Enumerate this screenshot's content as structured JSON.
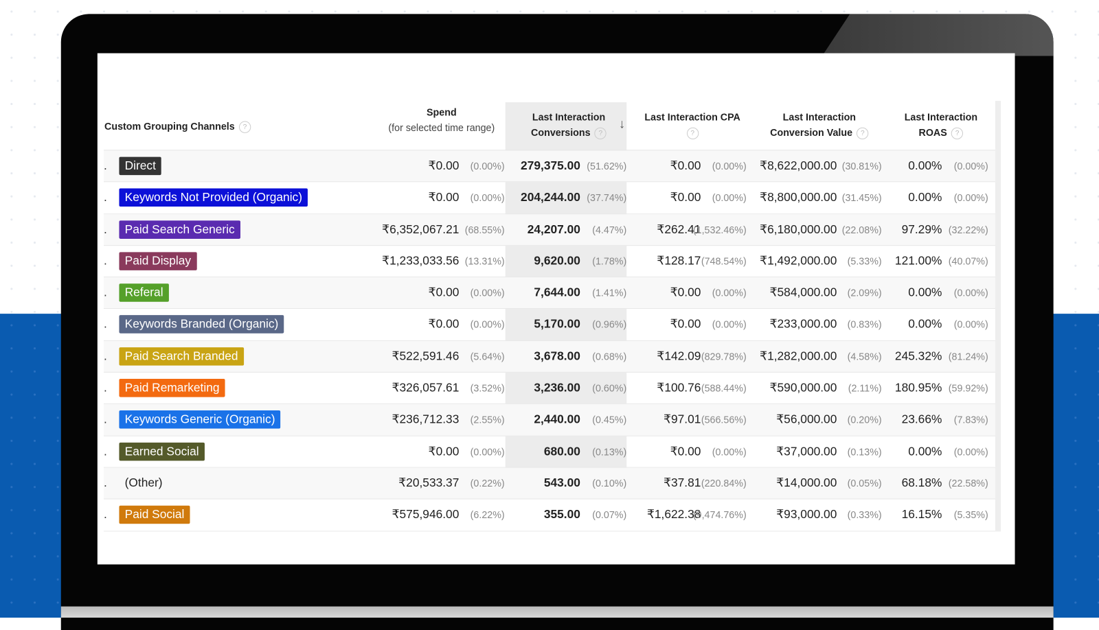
{
  "headers": {
    "channel": "Custom Grouping Channels",
    "spend": "Spend",
    "spend_sub": "(for selected time range)",
    "conv_1": "Last Interaction",
    "conv_2": "Conversions",
    "cpa": "Last Interaction CPA",
    "value_1": "Last Interaction",
    "value_2": "Conversion Value",
    "roas_1": "Last Interaction",
    "roas_2": "ROAS",
    "help": "?",
    "sort": "↓"
  },
  "rows": [
    {
      "channel": "Direct",
      "color": "#333333",
      "spend": "₹0.00",
      "spend_pct": "(0.00%)",
      "conv": "279,375.00",
      "conv_pct": "(51.62%)",
      "cpa": "₹0.00",
      "cpa_pct": "(0.00%)",
      "value": "₹8,622,000.00",
      "value_pct": "(30.81%)",
      "roas": "0.00%",
      "roas_pct": "(0.00%)"
    },
    {
      "channel": "Keywords Not Provided (Organic)",
      "color": "#0c10d8",
      "spend": "₹0.00",
      "spend_pct": "(0.00%)",
      "conv": "204,244.00",
      "conv_pct": "(37.74%)",
      "cpa": "₹0.00",
      "cpa_pct": "(0.00%)",
      "value": "₹8,800,000.00",
      "value_pct": "(31.45%)",
      "roas": "0.00%",
      "roas_pct": "(0.00%)"
    },
    {
      "channel": "Paid Search Generic",
      "color": "#5a2bb0",
      "spend": "₹6,352,067.21",
      "spend_pct": "(68.55%)",
      "conv": "24,207.00",
      "conv_pct": "(4.47%)",
      "cpa": "₹262.41",
      "cpa_pct": "(1,532.46%)",
      "value": "₹6,180,000.00",
      "value_pct": "(22.08%)",
      "roas": "97.29%",
      "roas_pct": "(32.22%)"
    },
    {
      "channel": "Paid Display",
      "color": "#8a3a5c",
      "spend": "₹1,233,033.56",
      "spend_pct": "(13.31%)",
      "conv": "9,620.00",
      "conv_pct": "(1.78%)",
      "cpa": "₹128.17",
      "cpa_pct": "(748.54%)",
      "value": "₹1,492,000.00",
      "value_pct": "(5.33%)",
      "roas": "121.00%",
      "roas_pct": "(40.07%)"
    },
    {
      "channel": "Referal",
      "color": "#55a02a",
      "spend": "₹0.00",
      "spend_pct": "(0.00%)",
      "conv": "7,644.00",
      "conv_pct": "(1.41%)",
      "cpa": "₹0.00",
      "cpa_pct": "(0.00%)",
      "value": "₹584,000.00",
      "value_pct": "(2.09%)",
      "roas": "0.00%",
      "roas_pct": "(0.00%)"
    },
    {
      "channel": "Keywords Branded (Organic)",
      "color": "#5a6888",
      "spend": "₹0.00",
      "spend_pct": "(0.00%)",
      "conv": "5,170.00",
      "conv_pct": "(0.96%)",
      "cpa": "₹0.00",
      "cpa_pct": "(0.00%)",
      "value": "₹233,000.00",
      "value_pct": "(0.83%)",
      "roas": "0.00%",
      "roas_pct": "(0.00%)"
    },
    {
      "channel": "Paid Search Branded",
      "color": "#c9a414",
      "spend": "₹522,591.46",
      "spend_pct": "(5.64%)",
      "conv": "3,678.00",
      "conv_pct": "(0.68%)",
      "cpa": "₹142.09",
      "cpa_pct": "(829.78%)",
      "value": "₹1,282,000.00",
      "value_pct": "(4.58%)",
      "roas": "245.32%",
      "roas_pct": "(81.24%)"
    },
    {
      "channel": "Paid Remarketing",
      "color": "#f36a10",
      "spend": "₹326,057.61",
      "spend_pct": "(3.52%)",
      "conv": "3,236.00",
      "conv_pct": "(0.60%)",
      "cpa": "₹100.76",
      "cpa_pct": "(588.44%)",
      "value": "₹590,000.00",
      "value_pct": "(2.11%)",
      "roas": "180.95%",
      "roas_pct": "(59.92%)"
    },
    {
      "channel": "Keywords Generic (Organic)",
      "color": "#1a72e8",
      "spend": "₹236,712.33",
      "spend_pct": "(2.55%)",
      "conv": "2,440.00",
      "conv_pct": "(0.45%)",
      "cpa": "₹97.01",
      "cpa_pct": "(566.56%)",
      "value": "₹56,000.00",
      "value_pct": "(0.20%)",
      "roas": "23.66%",
      "roas_pct": "(7.83%)"
    },
    {
      "channel": "Earned Social",
      "color": "#545a2a",
      "spend": "₹0.00",
      "spend_pct": "(0.00%)",
      "conv": "680.00",
      "conv_pct": "(0.13%)",
      "cpa": "₹0.00",
      "cpa_pct": "(0.00%)",
      "value": "₹37,000.00",
      "value_pct": "(0.13%)",
      "roas": "0.00%",
      "roas_pct": "(0.00%)"
    },
    {
      "channel": "(Other)",
      "color": "",
      "spend": "₹20,533.37",
      "spend_pct": "(0.22%)",
      "conv": "543.00",
      "conv_pct": "(0.10%)",
      "cpa": "₹37.81",
      "cpa_pct": "(220.84%)",
      "value": "₹14,000.00",
      "value_pct": "(0.05%)",
      "roas": "68.18%",
      "roas_pct": "(22.58%)"
    },
    {
      "channel": "Paid Social",
      "color": "#d07a0c",
      "spend": "₹575,946.00",
      "spend_pct": "(6.22%)",
      "conv": "355.00",
      "conv_pct": "(0.07%)",
      "cpa": "₹1,622.38",
      "cpa_pct": "(9,474.76%)",
      "value": "₹93,000.00",
      "value_pct": "(0.33%)",
      "roas": "16.15%",
      "roas_pct": "(5.35%)"
    }
  ]
}
